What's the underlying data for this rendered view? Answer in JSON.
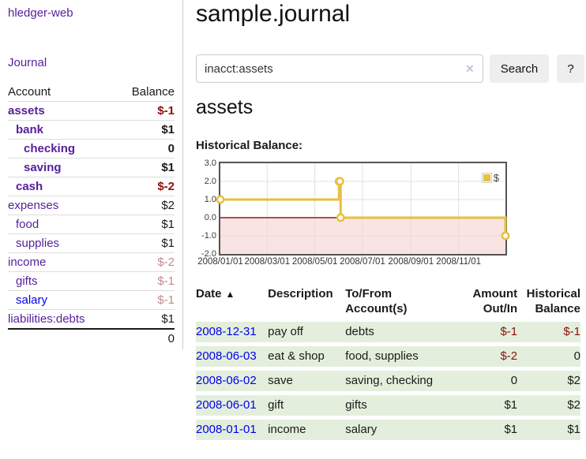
{
  "app": {
    "brand": "hledger-web"
  },
  "nav": {
    "journal": "Journal"
  },
  "sidebar": {
    "col_account": "Account",
    "col_balance": "Balance",
    "accounts": [
      {
        "name": "assets",
        "depth": 0,
        "emph": true,
        "balance": "$-1",
        "tone": "neg"
      },
      {
        "name": "bank",
        "depth": 1,
        "emph": true,
        "balance": "$1",
        "tone": "pos"
      },
      {
        "name": "checking",
        "depth": 2,
        "emph": true,
        "balance": "0",
        "tone": "pos"
      },
      {
        "name": "saving",
        "depth": 2,
        "emph": true,
        "balance": "$1",
        "tone": "pos"
      },
      {
        "name": "cash",
        "depth": 1,
        "emph": true,
        "balance": "$-2",
        "tone": "neg"
      },
      {
        "name": "expenses",
        "depth": 0,
        "emph": false,
        "balance": "$2",
        "tone": "pos"
      },
      {
        "name": "food",
        "depth": 1,
        "emph": false,
        "balance": "$1",
        "tone": "pos"
      },
      {
        "name": "supplies",
        "depth": 1,
        "emph": false,
        "balance": "$1",
        "tone": "pos"
      },
      {
        "name": "income",
        "depth": 0,
        "emph": false,
        "balance": "$-2",
        "tone": "neg-dim"
      },
      {
        "name": "gifts",
        "depth": 1,
        "emph": false,
        "balance": "$-1",
        "tone": "neg-dim"
      },
      {
        "name": "salary",
        "depth": 1,
        "emph": false,
        "balance": "$-1",
        "tone": "neg-dim",
        "link_state": "unvisited"
      },
      {
        "name": "liabilities:debts",
        "depth": 0,
        "emph": false,
        "balance": "$1",
        "tone": "pos"
      }
    ],
    "total": "0"
  },
  "header": {
    "title": "sample.journal"
  },
  "search": {
    "query": "inacct:assets",
    "clear_icon": "✕",
    "submit_label": "Search",
    "help_label": "?"
  },
  "account_page": {
    "heading": "assets",
    "chart_label": "Historical Balance:"
  },
  "chart_data": {
    "type": "line",
    "step": true,
    "title": "Historical Balance:",
    "legend": {
      "label": "$",
      "position": "top-right"
    },
    "series": [
      {
        "name": "$",
        "color": "#e8bf40",
        "points": [
          {
            "date": "2008-01-01",
            "value": 1
          },
          {
            "date": "2008-06-01",
            "value": 2
          },
          {
            "date": "2008-06-02",
            "value": 2
          },
          {
            "date": "2008-06-03",
            "value": 0
          },
          {
            "date": "2008-12-31",
            "value": -1
          }
        ]
      }
    ],
    "x_ticks": [
      {
        "date": "2008-01-01",
        "label": "2008/01/01"
      },
      {
        "date": "2008-03-01",
        "label": "2008/03/01"
      },
      {
        "date": "2008-05-01",
        "label": "2008/05/01"
      },
      {
        "date": "2008-07-01",
        "label": "2008/07/01"
      },
      {
        "date": "2008-09-01",
        "label": "2008/09/01"
      },
      {
        "date": "2008-11-01",
        "label": "2008/11/01"
      }
    ],
    "y_ticks": [
      {
        "value": 3,
        "label": "3.0"
      },
      {
        "value": 2,
        "label": "2.0"
      },
      {
        "value": 1,
        "label": "1.0"
      },
      {
        "value": 0,
        "label": "0.0"
      },
      {
        "value": -1,
        "label": "-1.0"
      },
      {
        "value": -2,
        "label": "-2.0"
      }
    ],
    "x_domain": [
      "2008-01-01",
      "2008-12-31"
    ],
    "ylim": [
      -2,
      3
    ],
    "grid": true,
    "negative_region_fill": "#f6d4d4",
    "zero_line_color": "#8b1d1d"
  },
  "register": {
    "headers": {
      "date": "Date",
      "sort_indicator": "▲",
      "description": "Description",
      "tofrom": "To/From Account(s)",
      "amount": "Amount Out/In",
      "balance": "Historical Balance"
    },
    "rows": [
      {
        "date": "2008-12-31",
        "description": "pay off",
        "accounts": "debts",
        "amount": "$-1",
        "amount_tone": "neg",
        "balance": "$-1",
        "balance_tone": "neg"
      },
      {
        "date": "2008-06-03",
        "description": "eat & shop",
        "accounts": "food, supplies",
        "amount": "$-2",
        "amount_tone": "neg",
        "balance": "0",
        "balance_tone": "pos"
      },
      {
        "date": "2008-06-02",
        "description": "save",
        "accounts": "saving, checking",
        "amount": "0",
        "amount_tone": "pos",
        "balance": "$2",
        "balance_tone": "pos"
      },
      {
        "date": "2008-06-01",
        "description": "gift",
        "accounts": "gifts",
        "amount": "$1",
        "amount_tone": "pos",
        "balance": "$2",
        "balance_tone": "pos"
      },
      {
        "date": "2008-01-01",
        "description": "income",
        "accounts": "salary",
        "amount": "$1",
        "amount_tone": "pos",
        "balance": "$1",
        "balance_tone": "pos"
      }
    ]
  },
  "colors": {
    "link_purple": "#551f99",
    "link_blue": "#0000ee",
    "negative": "#8c0e0e",
    "negative_dim": "#c28b8b",
    "row_green": "#e3efdc",
    "series_gold": "#e8bf40"
  }
}
